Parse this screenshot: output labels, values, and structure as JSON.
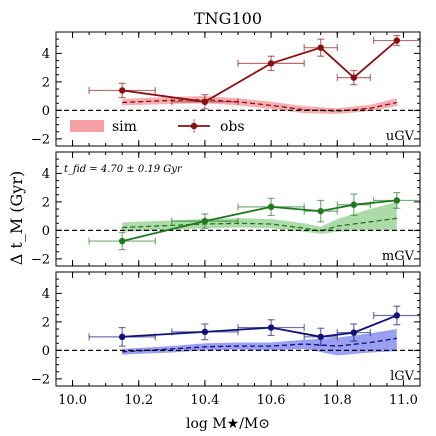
{
  "chart_data": {
    "type": "line",
    "title": "TNG100",
    "xlabel": "log M★/M⊙",
    "ylabel": "Δ t_M (Gyr)",
    "xlim": [
      9.95,
      11.05
    ],
    "x_ticks": [
      "10.0",
      "10.2",
      "10.4",
      "10.6",
      "10.8",
      "11.0"
    ],
    "x_tick_values": [
      10.0,
      10.2,
      10.4,
      10.6,
      10.8,
      11.0
    ],
    "ylim": [
      -2.5,
      5.5
    ],
    "y_ticks": [
      "−2",
      "0",
      "2",
      "4"
    ],
    "y_tick_values": [
      -2,
      0,
      2,
      4
    ],
    "grid": false,
    "legend": {
      "placement": "upper-left panel, lower area",
      "entries": [
        {
          "label": "sim",
          "color": "#f4a0a5"
        },
        {
          "label": "obs",
          "color": "#8b0f0f"
        }
      ]
    },
    "panels": [
      {
        "label": "uGV",
        "color": "#8b0f0f",
        "sim_color": "#f4a0a5",
        "obs": {
          "x": [
            10.15,
            10.4,
            10.6,
            10.75,
            10.85,
            10.98
          ],
          "y": [
            1.4,
            0.6,
            3.3,
            4.4,
            2.3,
            4.9
          ],
          "xerr": [
            0.1,
            0.1,
            0.1,
            0.05,
            0.05,
            0.07
          ],
          "yerr": [
            0.5,
            0.5,
            0.5,
            0.6,
            0.5,
            0.35
          ]
        },
        "sim": {
          "x": [
            10.15,
            10.3,
            10.4,
            10.5,
            10.6,
            10.7,
            10.8,
            10.9,
            10.98
          ],
          "median": [
            0.55,
            0.7,
            0.75,
            0.6,
            0.35,
            0.05,
            -0.05,
            0.15,
            0.55
          ],
          "lower": [
            0.35,
            0.45,
            0.5,
            0.35,
            0.1,
            -0.2,
            -0.25,
            -0.05,
            0.3
          ],
          "upper": [
            0.8,
            0.95,
            1.0,
            0.85,
            0.6,
            0.3,
            0.15,
            0.4,
            0.85
          ]
        }
      },
      {
        "label": "mGV",
        "color": "#1e7a1e",
        "sim_color": "#9fd49a",
        "annotation": "t_fid = 4.70 ± 0.19 Gyr",
        "obs": {
          "x": [
            10.15,
            10.4,
            10.6,
            10.75,
            10.85,
            10.98
          ],
          "y": [
            -0.75,
            0.65,
            1.65,
            1.35,
            1.8,
            2.1
          ],
          "xerr": [
            0.1,
            0.1,
            0.1,
            0.05,
            0.05,
            0.07
          ],
          "yerr": [
            0.6,
            0.5,
            0.6,
            0.75,
            0.75,
            0.55
          ]
        },
        "sim": {
          "x": [
            10.15,
            10.3,
            10.4,
            10.5,
            10.6,
            10.7,
            10.75,
            10.8,
            10.9,
            10.98
          ],
          "median": [
            0.2,
            0.35,
            0.45,
            0.5,
            0.45,
            0.15,
            -0.05,
            0.3,
            0.6,
            0.85
          ],
          "lower": [
            -0.1,
            0.05,
            0.15,
            0.2,
            0.15,
            -0.1,
            -0.25,
            -0.1,
            0.0,
            0.0
          ],
          "upper": [
            0.55,
            0.7,
            0.8,
            0.85,
            0.8,
            0.5,
            0.25,
            0.8,
            1.5,
            2.0
          ]
        }
      },
      {
        "label": "lGV",
        "color": "#10107a",
        "sim_color": "#8a8ef0",
        "obs": {
          "x": [
            10.15,
            10.4,
            10.6,
            10.75,
            10.85,
            10.98
          ],
          "y": [
            0.95,
            1.3,
            1.6,
            0.95,
            1.25,
            2.45
          ],
          "xerr": [
            0.1,
            0.1,
            0.1,
            0.05,
            0.05,
            0.07
          ],
          "yerr": [
            0.65,
            0.55,
            0.55,
            0.6,
            0.6,
            0.65
          ]
        },
        "sim": {
          "x": [
            10.15,
            10.3,
            10.4,
            10.5,
            10.6,
            10.7,
            10.8,
            10.9,
            10.98
          ],
          "median": [
            -0.1,
            0.1,
            0.25,
            0.3,
            0.3,
            0.45,
            0.3,
            0.55,
            0.85
          ],
          "lower": [
            -0.3,
            -0.15,
            0.0,
            0.05,
            0.0,
            0.1,
            -0.35,
            -0.15,
            -0.05
          ],
          "upper": [
            0.1,
            0.3,
            0.5,
            0.55,
            0.55,
            0.75,
            0.9,
            1.2,
            1.5
          ]
        }
      }
    ]
  }
}
